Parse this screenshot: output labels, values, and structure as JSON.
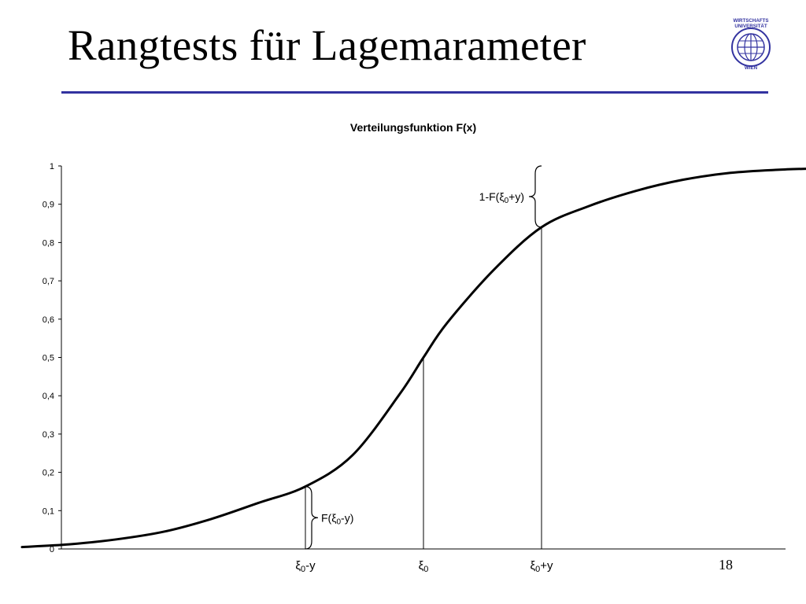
{
  "slide": {
    "title": "Rangtests für Lagemarameter",
    "page_number": "18",
    "accent_color": "#3333a0"
  },
  "logo": {
    "icon": "university-globe-seal",
    "line1": "WIRTSCHAFTS",
    "line2": "UNIVERSITÄT",
    "line3": "WIEN"
  },
  "chart_data": {
    "type": "line",
    "title": "Verteilungsfunktion F(x)",
    "xlabel": "",
    "ylabel": "",
    "ylim": [
      0,
      1
    ],
    "xlim": [
      -3.5,
      3.5
    ],
    "y_ticks": [
      "0",
      "0,1",
      "0,2",
      "0,3",
      "0,4",
      "0,5",
      "0,6",
      "0,7",
      "0,8",
      "0,9",
      "1"
    ],
    "grid": false,
    "legend": "none",
    "series": [
      {
        "x": [
          -3.4,
          -3.0,
          -2.6,
          -2.2,
          -1.8,
          -1.4,
          -1.0,
          -0.6,
          -0.2,
          0.0,
          0.2,
          0.6,
          1.0,
          1.4,
          1.8,
          2.2,
          2.6,
          3.0,
          3.4
        ],
        "y": [
          0.005,
          0.012,
          0.025,
          0.045,
          0.078,
          0.12,
          0.163,
          0.245,
          0.405,
          0.5,
          0.59,
          0.73,
          0.84,
          0.895,
          0.935,
          0.964,
          0.982,
          0.99,
          0.994
        ]
      }
    ],
    "markers": [
      {
        "x": -1.0,
        "y": 0.163,
        "label_main": "ξ",
        "label_sub": "0",
        "label_suffix": "-y"
      },
      {
        "x": 0.0,
        "y": 0.5,
        "label_main": "ξ",
        "label_sub": "0",
        "label_suffix": ""
      },
      {
        "x": 1.0,
        "y": 0.84,
        "label_main": "ξ",
        "label_sub": "0",
        "label_suffix": "+y"
      }
    ],
    "annotations": [
      {
        "text_prefix": "F(ξ",
        "text_sub": "0",
        "text_suffix": "-y)",
        "side": "right",
        "from_y": 0,
        "to_y": 0.163,
        "x": -1.0
      },
      {
        "text_prefix": "1-F(ξ",
        "text_sub": "0",
        "text_suffix": "+y)",
        "side": "left",
        "from_y": 0.84,
        "to_y": 1.0,
        "x": 1.0
      }
    ]
  }
}
